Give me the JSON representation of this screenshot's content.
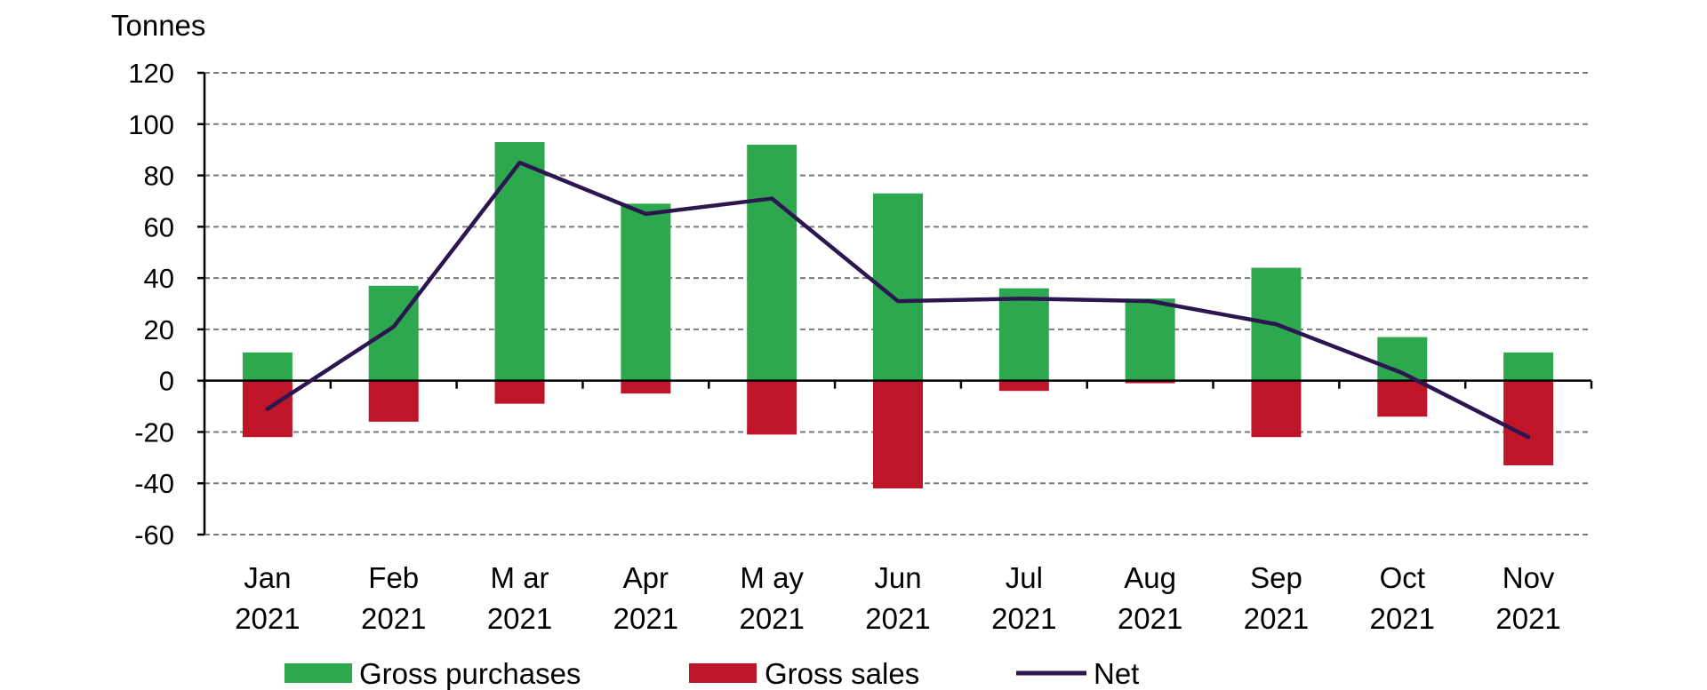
{
  "chart_data": {
    "type": "bar",
    "stacking": "diverging",
    "unit_label": "Tonnes",
    "categories": [
      [
        "Jan",
        "2021"
      ],
      [
        "Feb",
        "2021"
      ],
      [
        "M ar",
        "2021"
      ],
      [
        "Apr",
        "2021"
      ],
      [
        "M ay",
        "2021"
      ],
      [
        "Jun",
        "2021"
      ],
      [
        "Jul",
        "2021"
      ],
      [
        "Aug",
        "2021"
      ],
      [
        "Sep",
        "2021"
      ],
      [
        "Oct",
        "2021"
      ],
      [
        "Nov",
        "2021"
      ]
    ],
    "series": [
      {
        "name": "Gross purchases",
        "type": "bar",
        "color": "#2ea84f",
        "values": [
          11,
          37,
          93,
          69,
          92,
          73,
          36,
          32,
          44,
          17,
          11
        ]
      },
      {
        "name": "Gross sales",
        "type": "bar",
        "color": "#be1628",
        "values": [
          -22,
          -16,
          -9,
          -5,
          -21,
          -42,
          -4,
          -1,
          -22,
          -14,
          -33
        ]
      },
      {
        "name": "Net",
        "type": "line",
        "color": "#2c1650",
        "values": [
          -11,
          21,
          85,
          65,
          71,
          31,
          32,
          31,
          22,
          3,
          -22
        ]
      }
    ],
    "ylim": [
      -60,
      120
    ],
    "yticks": [
      "-60",
      "-40",
      "-20",
      "0",
      "20",
      "40",
      "60",
      "80",
      "100",
      "120"
    ],
    "grid": "horizontal-dashed",
    "legend": {
      "position": "bottom",
      "entries": [
        "Gross purchases",
        "Gross sales",
        "Net"
      ]
    }
  }
}
